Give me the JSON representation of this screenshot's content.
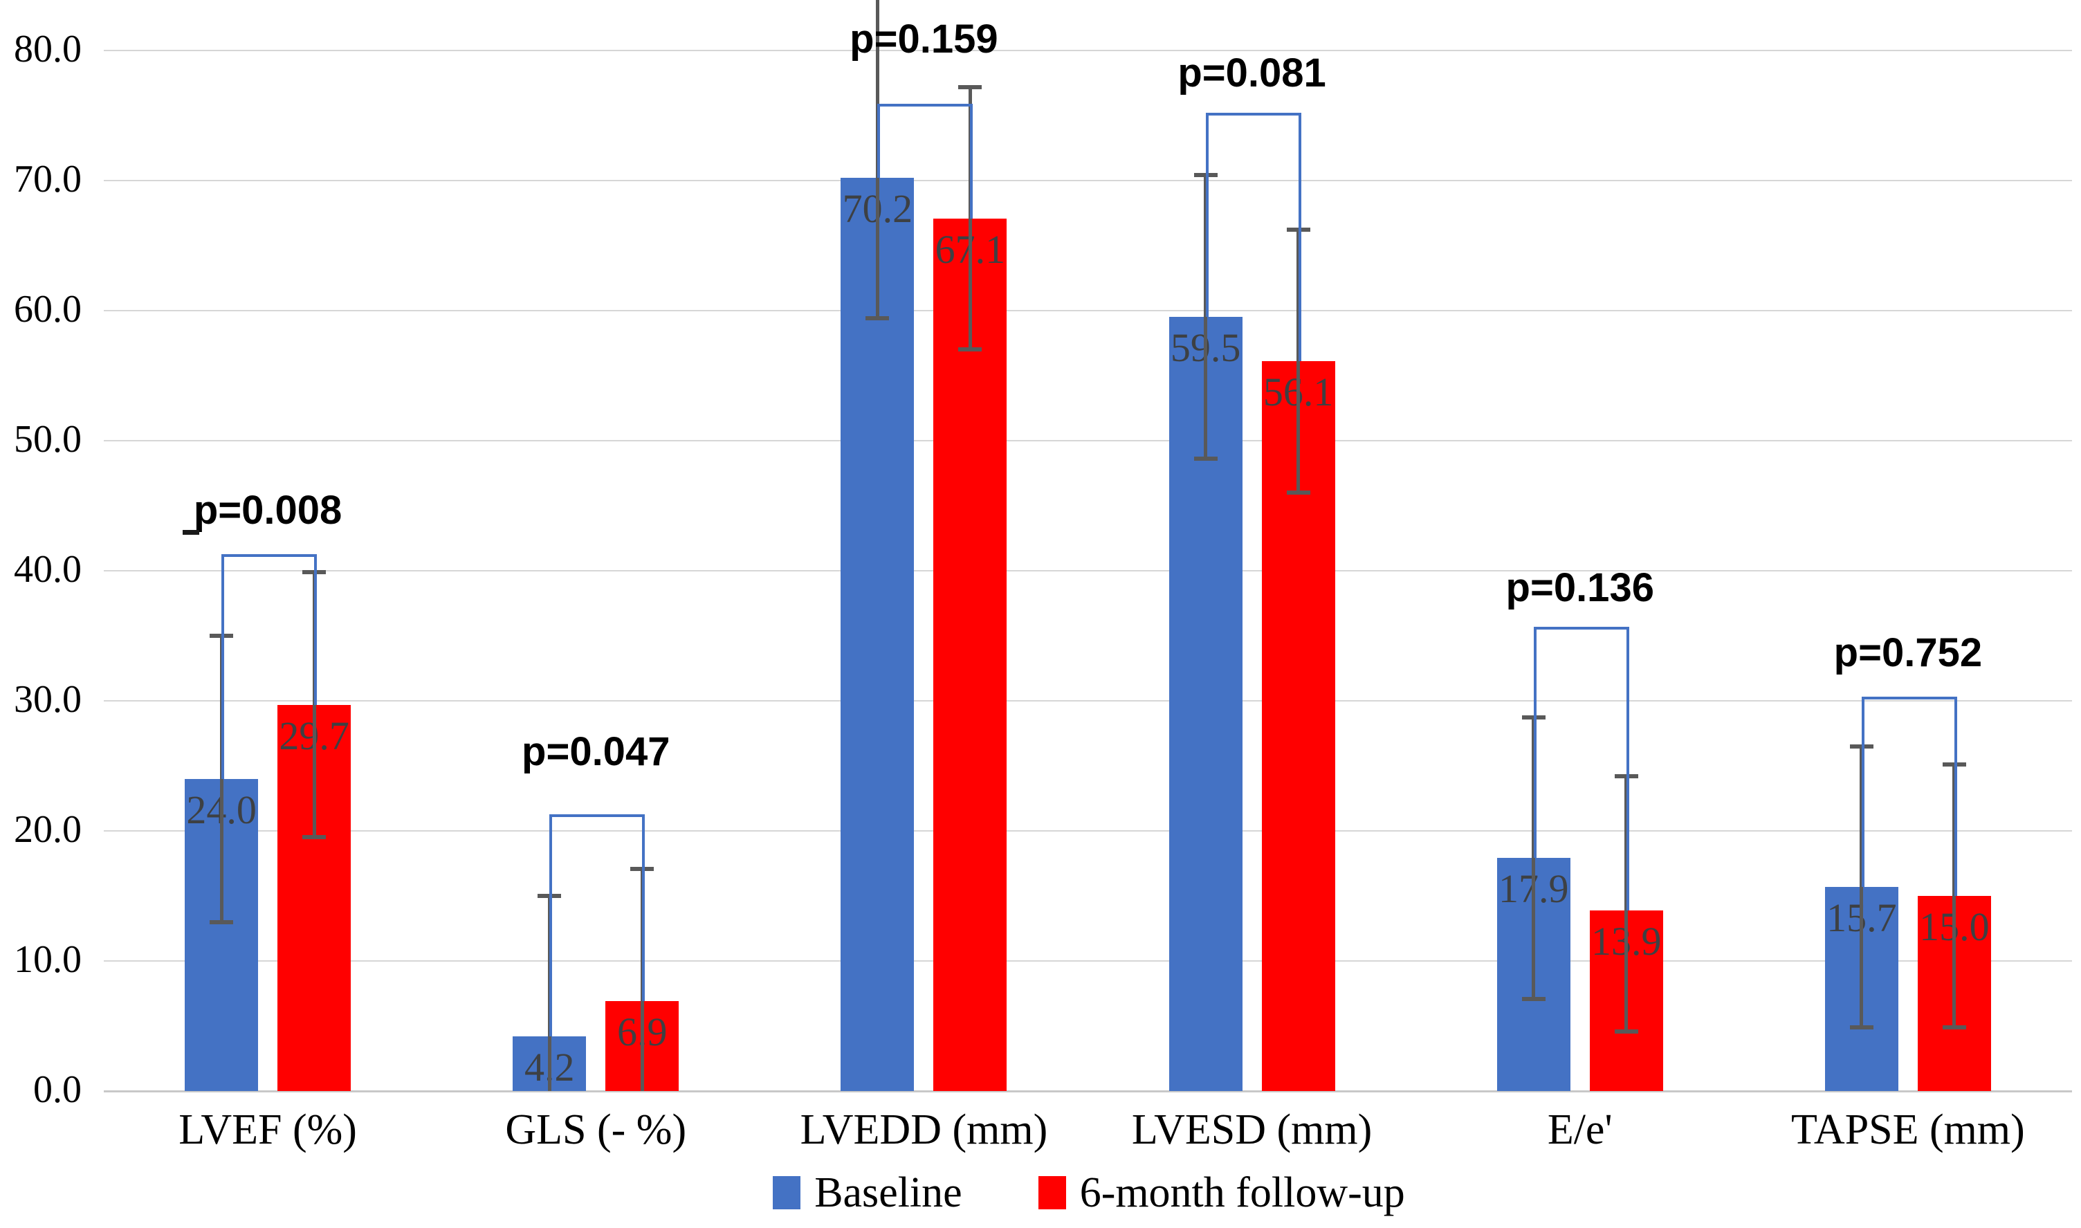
{
  "chart_data": {
    "type": "bar",
    "title": "",
    "categories": [
      "LVEF (%)",
      "GLS (- %)",
      "LVEDD (mm)",
      "LVESD (mm)",
      "E/e'",
      "TAPSE (mm)"
    ],
    "series": [
      {
        "name": "Baseline",
        "color": "#4472C4",
        "values": [
          24.0,
          4.2,
          70.2,
          59.5,
          17.9,
          15.7
        ],
        "value_labels": [
          "24.0",
          "4.2",
          "70.2",
          "59.5",
          "17.9",
          "15.7"
        ],
        "err_low": [
          13.0,
          -6.6,
          59.4,
          48.6,
          7.1,
          4.9
        ],
        "err_high": [
          35.0,
          15.0,
          84.5,
          70.4,
          28.7,
          26.5
        ]
      },
      {
        "name": "6-month follow-up",
        "color": "#FF0000",
        "values": [
          29.7,
          6.9,
          67.1,
          56.1,
          13.9,
          15.0
        ],
        "value_labels": [
          "29.7",
          "6.9",
          "67.1",
          "56.1",
          "13.9",
          "15.0"
        ],
        "err_low": [
          19.5,
          -3.3,
          57.0,
          46.0,
          4.6,
          4.9
        ],
        "err_high": [
          39.9,
          17.1,
          77.2,
          66.2,
          24.2,
          25.1
        ]
      }
    ],
    "p_annotations": {
      "labels": [
        "p=0.008",
        "p=0.047",
        "p=0.159",
        "p=0.081",
        "p=0.136",
        "p=0.752"
      ],
      "bracket_top": [
        41.3,
        21.3,
        75.9,
        75.2,
        35.7,
        30.3
      ],
      "label_y": [
        44.6,
        26.0,
        80.8,
        78.2,
        38.6,
        33.6
      ],
      "bracket_color": "#4472C4"
    },
    "xlabel": "",
    "ylabel": "",
    "ylim": [
      0,
      83.9
    ],
    "yticks": [
      0,
      10,
      20,
      30,
      40,
      50,
      60,
      70,
      80
    ],
    "ytick_labels": [
      "0.0",
      "10.0",
      "20.0",
      "30.0",
      "40.0",
      "50.0",
      "60.0",
      "70.0",
      "80.0"
    ],
    "grid": true,
    "legend_position": "bottom",
    "error_bar_color": "#595959",
    "gridline_color": "#D6D6D6"
  },
  "legend": {
    "items": [
      {
        "label": "Baseline",
        "color": "#4472C4"
      },
      {
        "label": "6-month follow-up",
        "color": "#FF0000"
      }
    ]
  }
}
